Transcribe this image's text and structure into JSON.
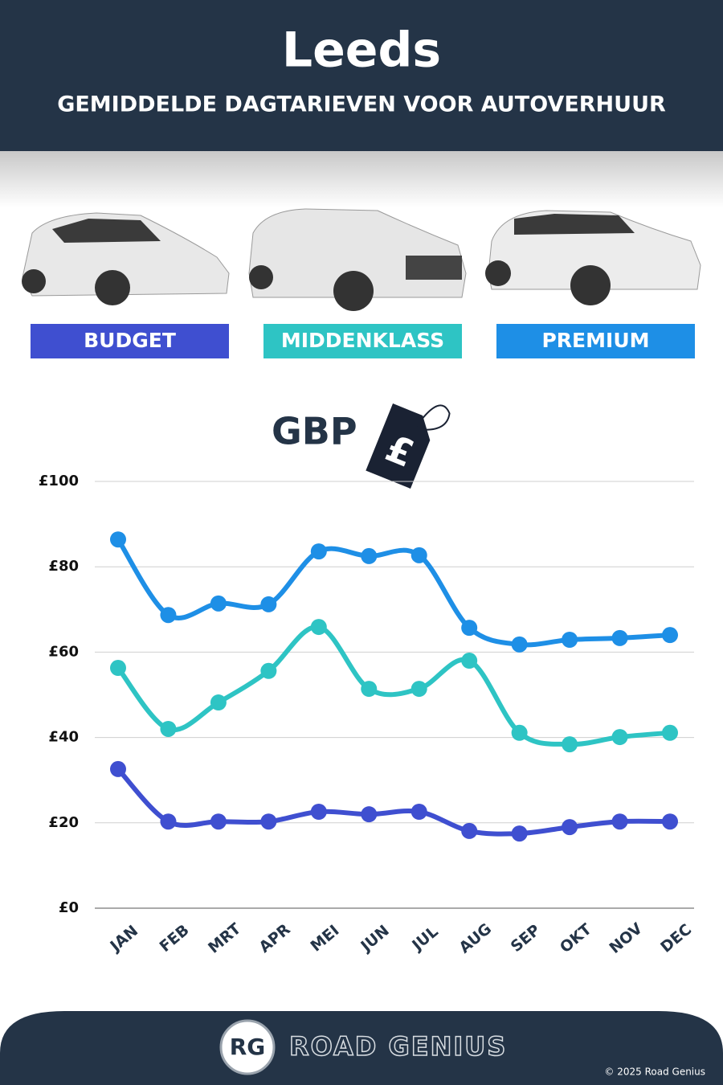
{
  "header": {
    "title": "Leeds",
    "subtitle": "GEMIDDELDE DAGTARIEVEN VOOR AUTOVERHUUR"
  },
  "currency_label": "GBP",
  "tag_symbol": "£",
  "footer": {
    "logo": "RG",
    "brand": "ROAD GENIUS",
    "copyright": "© 2025 Road Genius"
  },
  "chart_data": {
    "type": "line",
    "categories": [
      "JAN",
      "FEB",
      "MRT",
      "APR",
      "MEI",
      "JUN",
      "JUL",
      "AUG",
      "SEP",
      "OKT",
      "NOV",
      "DEC"
    ],
    "series": [
      {
        "name": "BUDGET",
        "color": "#3f4fd0",
        "values": [
          32.6,
          20.3,
          20.3,
          20.3,
          22.6,
          22.0,
          22.6,
          18.1,
          17.5,
          19.0,
          20.3,
          20.3
        ]
      },
      {
        "name": "MIDDENKLASS",
        "color": "#2ec4c4",
        "values": [
          56.3,
          42.0,
          48.2,
          55.6,
          65.9,
          51.4,
          51.4,
          58.0,
          41.1,
          38.4,
          40.1,
          41.1
        ]
      },
      {
        "name": "PREMIUM",
        "color": "#1e8fe6",
        "values": [
          86.4,
          68.7,
          71.4,
          71.2,
          83.6,
          82.5,
          82.7,
          65.7,
          61.8,
          62.9,
          63.3,
          64.0
        ]
      }
    ],
    "ylim": [
      0,
      100
    ],
    "yticks": [
      {
        "value": 0,
        "label": "£0"
      },
      {
        "value": 20,
        "label": "£20"
      },
      {
        "value": 40,
        "label": "£40"
      },
      {
        "value": 60,
        "label": "£60"
      },
      {
        "value": 80,
        "label": "£80"
      },
      {
        "value": 100,
        "label": "£100"
      }
    ],
    "grid": true
  }
}
